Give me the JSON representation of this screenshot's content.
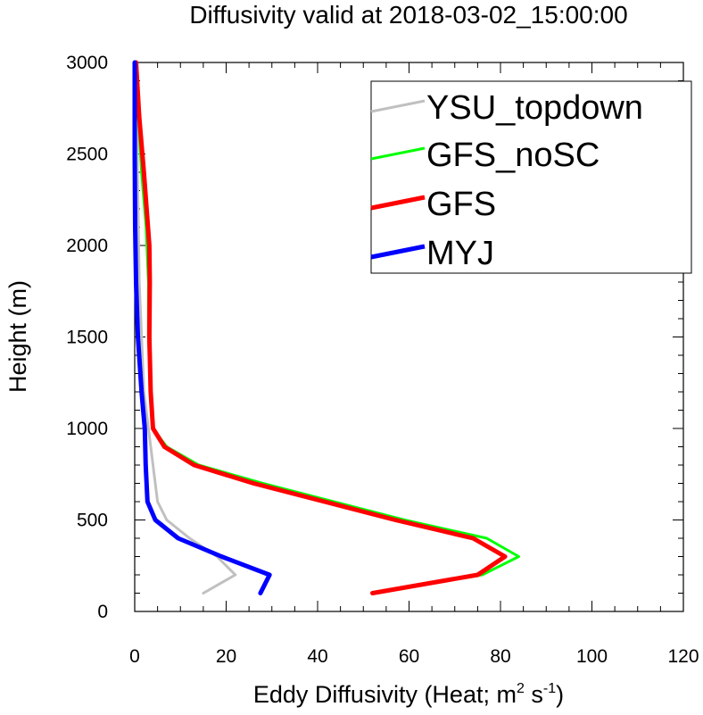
{
  "chart_data": {
    "type": "line",
    "title": "Diffusivity valid at 2018-03-02_15:00:00",
    "xlabel": {
      "prefix": "Eddy Diffusivity (Heat; m",
      "sup1": "2",
      "mid": " s",
      "sup2": "-1",
      "suffix": ")"
    },
    "ylabel": "Height (m)",
    "xlim": [
      0,
      120
    ],
    "ylim": [
      0,
      3000
    ],
    "xticks": [
      "0",
      "20",
      "40",
      "60",
      "80",
      "100",
      "120"
    ],
    "yticks": [
      "0",
      "500",
      "1000",
      "1500",
      "2000",
      "2500",
      "3000"
    ],
    "legend_position": "top-right",
    "series": [
      {
        "name": "YSU_topdown",
        "color": "#c0c0c0",
        "width": 3,
        "x": [
          15,
          22,
          18,
          12,
          7,
          5,
          4,
          3,
          2,
          1.5,
          1,
          0.8,
          0.6,
          0.5,
          0.5
        ],
        "y": [
          100,
          200,
          300,
          400,
          500,
          600,
          800,
          1000,
          1200,
          1500,
          1800,
          2100,
          2400,
          2700,
          3000
        ]
      },
      {
        "name": "GFS_noSC",
        "color": "#00ff00",
        "width": 3,
        "x": [
          52,
          76,
          84,
          77,
          59,
          28,
          14,
          7,
          4,
          3.5,
          3,
          3,
          2.5,
          1.5,
          0.8,
          0.4
        ],
        "y": [
          100,
          200,
          300,
          400,
          500,
          700,
          800,
          900,
          1000,
          1200,
          1500,
          1800,
          2100,
          2400,
          2700,
          3000
        ]
      },
      {
        "name": "GFS",
        "color": "#ff0000",
        "width": 5,
        "x": [
          52,
          75,
          81,
          74,
          57,
          26,
          13,
          6.5,
          4,
          3.5,
          3.2,
          3.3,
          3.2,
          2,
          1,
          0.3
        ],
        "y": [
          100,
          200,
          300,
          400,
          500,
          700,
          800,
          900,
          1000,
          1200,
          1500,
          1800,
          2000,
          2400,
          2700,
          3000
        ]
      },
      {
        "name": "MYJ",
        "color": "#0000ff",
        "width": 5,
        "x": [
          27.5,
          29.5,
          19,
          9.5,
          4.5,
          2.8,
          2.4,
          2.2,
          1.5,
          0.7,
          0.3,
          0.1,
          0,
          0
        ],
        "y": [
          100,
          200,
          300,
          400,
          500,
          600,
          800,
          1000,
          1200,
          1500,
          1800,
          2100,
          2500,
          3000
        ]
      }
    ]
  }
}
